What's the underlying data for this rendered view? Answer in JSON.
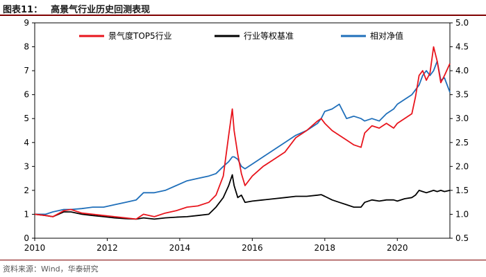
{
  "figure": {
    "label": "图表11：",
    "title": "高景气行业历史回测表现",
    "source": "资料来源：Wind，华泰研究"
  },
  "colors": {
    "series_top5": "#e8141c",
    "series_equal": "#000000",
    "series_rel": "#1f6fba",
    "frame": "#000000",
    "rule": "#7f0000"
  },
  "chart_data": {
    "type": "line",
    "title": "高景气行业历史回测表现",
    "xlabel": "",
    "ylabel": "",
    "xlim": [
      2010,
      2021.45
    ],
    "x_ticks": [
      2010,
      2012,
      2014,
      2016,
      2018,
      2020
    ],
    "y_left": {
      "lim": [
        0,
        9
      ],
      "ticks": [
        0,
        1,
        2,
        3,
        4,
        5,
        6,
        7,
        8,
        9
      ]
    },
    "y_right": {
      "lim": [
        0.5,
        5.0
      ],
      "ticks": [
        "0.5",
        "1.0",
        "1.5",
        "2.0",
        "2.5",
        "3.0",
        "3.5",
        "4.0",
        "4.5",
        "5.0"
      ]
    },
    "legend_position": "top",
    "grid": false,
    "series": [
      {
        "name": "景气度TOP5行业",
        "axis": "left",
        "color": "#e8141c",
        "x": [
          2010.0,
          2010.3,
          2010.5,
          2010.8,
          2011.0,
          2011.3,
          2011.6,
          2011.9,
          2012.2,
          2012.5,
          2012.8,
          2013.0,
          2013.3,
          2013.6,
          2013.9,
          2014.2,
          2014.5,
          2014.8,
          2015.0,
          2015.2,
          2015.35,
          2015.45,
          2015.5,
          2015.6,
          2015.7,
          2015.8,
          2016.0,
          2016.3,
          2016.6,
          2016.9,
          2017.2,
          2017.5,
          2017.8,
          2017.9,
          2018.0,
          2018.2,
          2018.4,
          2018.6,
          2018.8,
          2019.0,
          2019.1,
          2019.3,
          2019.5,
          2019.7,
          2019.9,
          2020.0,
          2020.2,
          2020.4,
          2020.5,
          2020.6,
          2020.7,
          2020.8,
          2020.9,
          2021.0,
          2021.1,
          2021.2,
          2021.3,
          2021.45
        ],
        "y": [
          1.0,
          0.95,
          0.9,
          1.15,
          1.2,
          1.05,
          1.0,
          0.95,
          0.9,
          0.85,
          0.8,
          1.0,
          0.9,
          1.05,
          1.15,
          1.3,
          1.35,
          1.5,
          1.8,
          2.6,
          4.3,
          5.4,
          4.5,
          3.5,
          2.7,
          2.2,
          2.6,
          3.0,
          3.3,
          3.6,
          4.2,
          4.5,
          4.9,
          5.0,
          4.8,
          4.5,
          4.3,
          4.1,
          3.9,
          3.8,
          4.4,
          4.7,
          4.6,
          4.8,
          4.6,
          4.8,
          5.0,
          5.2,
          5.9,
          6.8,
          7.0,
          6.6,
          6.9,
          8.0,
          7.4,
          6.5,
          6.8,
          7.3
        ]
      },
      {
        "name": "行业等权基准",
        "axis": "left",
        "color": "#000000",
        "x": [
          2010.0,
          2010.3,
          2010.5,
          2010.8,
          2011.0,
          2011.3,
          2011.6,
          2011.9,
          2012.2,
          2012.5,
          2012.8,
          2013.0,
          2013.3,
          2013.6,
          2013.9,
          2014.2,
          2014.5,
          2014.8,
          2015.0,
          2015.2,
          2015.35,
          2015.45,
          2015.5,
          2015.6,
          2015.7,
          2015.8,
          2016.0,
          2016.3,
          2016.6,
          2016.9,
          2017.2,
          2017.5,
          2017.8,
          2017.9,
          2018.0,
          2018.2,
          2018.4,
          2018.6,
          2018.8,
          2019.0,
          2019.1,
          2019.3,
          2019.5,
          2019.7,
          2019.9,
          2020.0,
          2020.2,
          2020.4,
          2020.5,
          2020.6,
          2020.7,
          2020.8,
          2020.9,
          2021.0,
          2021.1,
          2021.2,
          2021.3,
          2021.45
        ],
        "y": [
          1.0,
          0.95,
          0.9,
          1.1,
          1.1,
          1.0,
          0.95,
          0.9,
          0.85,
          0.82,
          0.8,
          0.85,
          0.8,
          0.85,
          0.88,
          0.9,
          0.95,
          1.0,
          1.3,
          1.7,
          2.2,
          2.65,
          2.2,
          1.7,
          1.8,
          1.5,
          1.55,
          1.6,
          1.65,
          1.7,
          1.75,
          1.75,
          1.8,
          1.82,
          1.75,
          1.6,
          1.5,
          1.4,
          1.3,
          1.3,
          1.5,
          1.6,
          1.55,
          1.6,
          1.6,
          1.55,
          1.65,
          1.7,
          1.8,
          2.0,
          1.95,
          1.9,
          1.95,
          2.0,
          1.95,
          2.0,
          1.95,
          2.0
        ]
      },
      {
        "name": "相对净值",
        "axis": "right",
        "color": "#1f6fba",
        "x": [
          2010.0,
          2010.3,
          2010.5,
          2010.8,
          2011.0,
          2011.3,
          2011.6,
          2011.9,
          2012.2,
          2012.5,
          2012.8,
          2013.0,
          2013.3,
          2013.6,
          2013.9,
          2014.2,
          2014.5,
          2014.8,
          2015.0,
          2015.2,
          2015.35,
          2015.45,
          2015.5,
          2015.6,
          2015.7,
          2015.8,
          2016.0,
          2016.3,
          2016.6,
          2016.9,
          2017.2,
          2017.5,
          2017.8,
          2017.9,
          2018.0,
          2018.2,
          2018.4,
          2018.6,
          2018.8,
          2019.0,
          2019.1,
          2019.3,
          2019.5,
          2019.7,
          2019.9,
          2020.0,
          2020.2,
          2020.4,
          2020.5,
          2020.6,
          2020.7,
          2020.8,
          2020.9,
          2021.0,
          2021.1,
          2021.2,
          2021.3,
          2021.45
        ],
        "y": [
          1.0,
          1.0,
          1.05,
          1.1,
          1.1,
          1.12,
          1.15,
          1.15,
          1.2,
          1.25,
          1.3,
          1.45,
          1.45,
          1.5,
          1.6,
          1.7,
          1.75,
          1.8,
          1.85,
          2.0,
          2.1,
          2.2,
          2.2,
          2.15,
          2.0,
          1.95,
          2.05,
          2.2,
          2.35,
          2.5,
          2.65,
          2.75,
          2.9,
          3.0,
          3.15,
          3.2,
          3.3,
          3.0,
          3.05,
          3.0,
          2.95,
          3.0,
          2.95,
          3.1,
          3.2,
          3.3,
          3.4,
          3.5,
          3.6,
          3.7,
          3.9,
          4.0,
          3.9,
          4.0,
          4.2,
          3.8,
          3.85,
          3.55
        ]
      }
    ]
  }
}
